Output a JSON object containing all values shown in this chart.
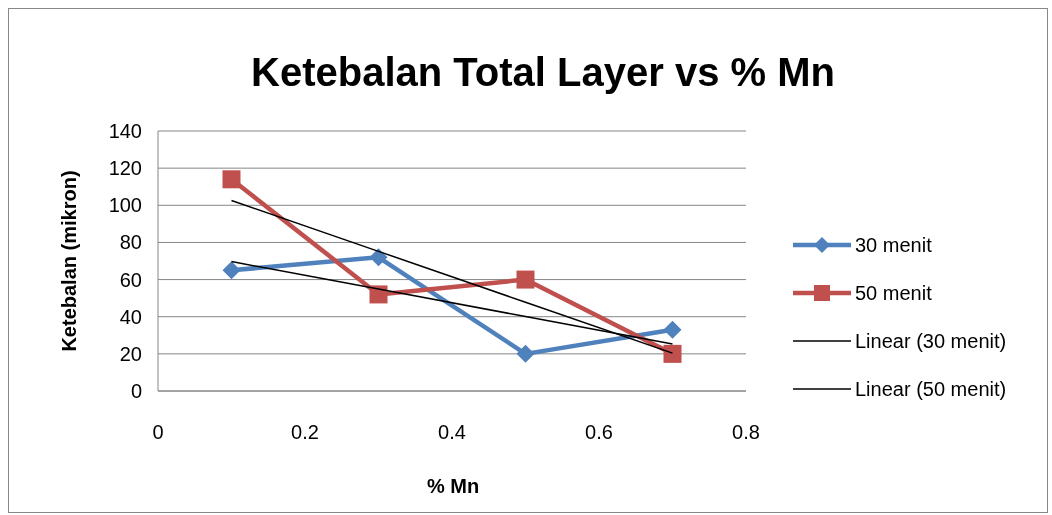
{
  "chart_data": {
    "type": "line",
    "title": "Ketebalan Total Layer vs % Mn",
    "xlabel": "% Mn",
    "ylabel": "Ketebalan (mikron)",
    "x": [
      0.1,
      0.3,
      0.5,
      0.7
    ],
    "series": [
      {
        "name": "30 menit",
        "color": "#4f81bd",
        "values": [
          65,
          72,
          20,
          33
        ],
        "marker": "diamond"
      },
      {
        "name": "50 menit",
        "color": "#c0504d",
        "values": [
          114,
          52,
          60,
          20
        ],
        "marker": "square"
      },
      {
        "name": "Linear (30 menit)",
        "color": "#000000",
        "type": "line",
        "values": [
          69.7,
          54.9,
          40.1,
          25.3
        ],
        "marker": "none"
      },
      {
        "name": "Linear (50 menit)",
        "color": "#000000",
        "type": "line",
        "values": [
          102.6,
          75.2,
          47.8,
          20.4
        ],
        "marker": "none"
      }
    ],
    "xlim": [
      0,
      0.8
    ],
    "xticks": [
      0,
      0.2,
      0.4,
      0.6,
      0.8
    ],
    "ylim": [
      0,
      140
    ],
    "yticks": [
      0,
      20,
      40,
      60,
      80,
      100,
      120,
      140
    ],
    "grid": "y",
    "legend": "right",
    "line_style": "solid"
  }
}
